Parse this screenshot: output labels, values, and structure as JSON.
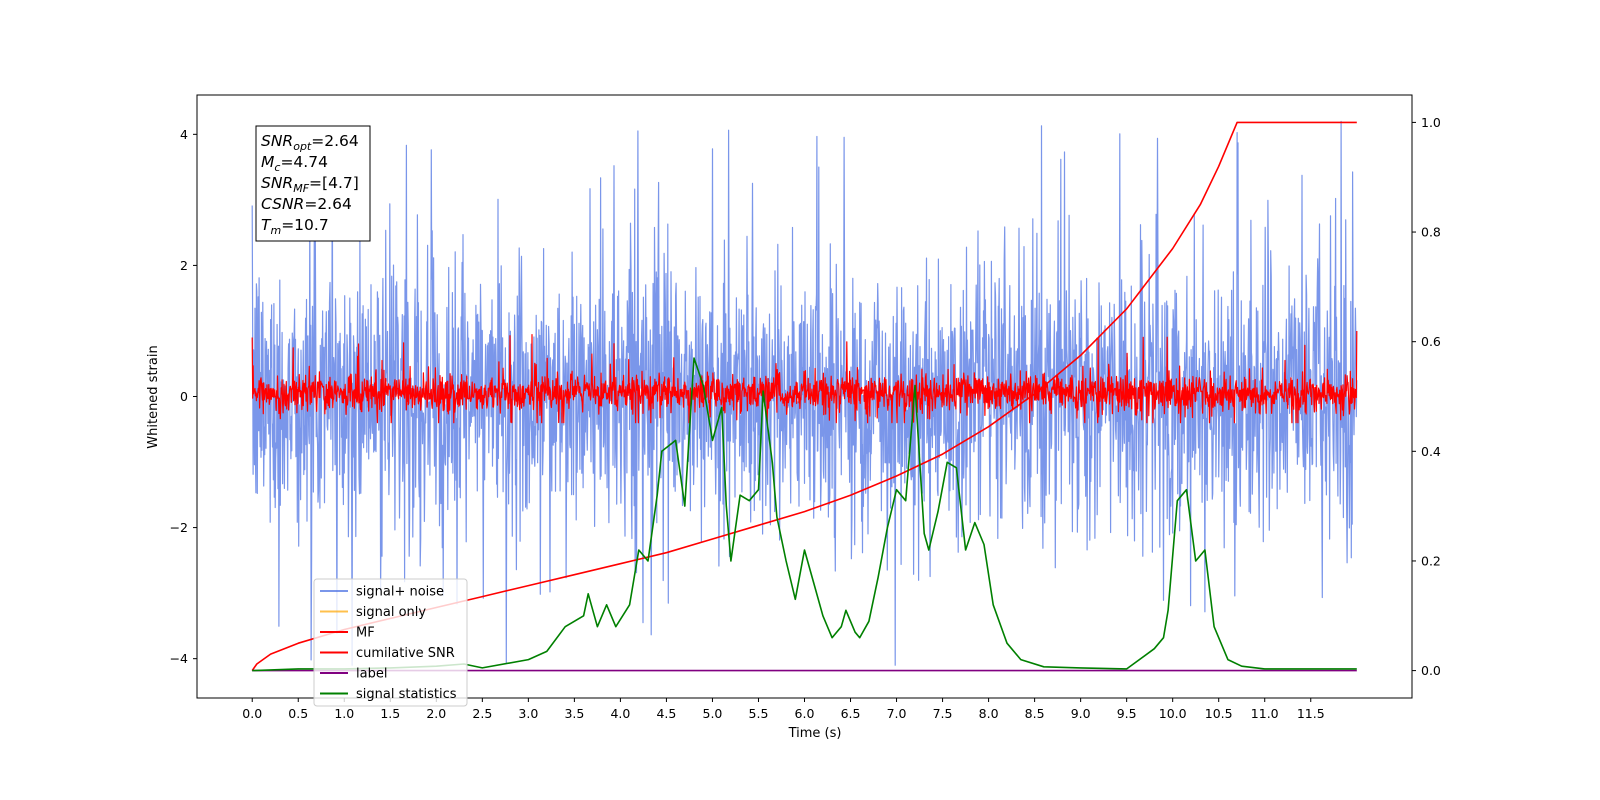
{
  "chart_data": {
    "type": "line",
    "xlabel": "Time (s)",
    "ylabel": "Whitened strain",
    "xlim": [
      -0.6,
      12.6
    ],
    "ylim_left": [
      -4.6,
      4.6
    ],
    "ylim_right": [
      -0.05,
      1.05
    ],
    "x_ticks": [
      0.0,
      0.5,
      1.0,
      1.5,
      2.0,
      2.5,
      3.0,
      3.5,
      4.0,
      4.5,
      5.0,
      5.5,
      6.0,
      6.5,
      7.0,
      7.5,
      8.0,
      8.5,
      9.0,
      9.5,
      10.0,
      10.5,
      11.0,
      11.5
    ],
    "x_tick_labels": [
      "0.0",
      "0.5",
      "1.0",
      "1.5",
      "2.0",
      "2.5",
      "3.0",
      "3.5",
      "4.0",
      "4.5",
      "5.0",
      "5.5",
      "6.0",
      "6.5",
      "7.0",
      "7.5",
      "8.0",
      "8.5",
      "9.0",
      "9.5",
      "10.0",
      "10.5",
      "11.0",
      "11.5"
    ],
    "y_left_ticks": [
      -4,
      -2,
      0,
      2,
      4
    ],
    "y_left_tick_labels": [
      "−4",
      "−2",
      "0",
      "2",
      "4"
    ],
    "y_right_ticks": [
      0.0,
      0.2,
      0.4,
      0.6,
      0.8,
      1.0
    ],
    "y_right_tick_labels": [
      "0.0",
      "0.2",
      "0.4",
      "0.6",
      "0.8",
      "1.0"
    ],
    "grid": false,
    "legend_placement": "lower-left",
    "annotation_box": {
      "lines": [
        {
          "base": "SNR",
          "sub": "opt",
          "rest": "=2.64"
        },
        {
          "base": "M",
          "sub": "c",
          "rest": "=4.74"
        },
        {
          "base": "SNR",
          "sub": "MF",
          "rest": "=[4.7]"
        },
        {
          "base": "CSNR",
          "sub": "",
          "rest": "=2.64"
        },
        {
          "base": "T",
          "sub": "m",
          "rest": "=10.7"
        }
      ]
    },
    "series": [
      {
        "name": "signal+ noise",
        "axis": "left",
        "color": "#4169e1",
        "opacity": 0.7,
        "kind": "noise",
        "x_range": [
          0.0,
          12.0
        ],
        "typical_range": [
          -2.5,
          2.5
        ],
        "extremes": [
          -4.1,
          4.2
        ]
      },
      {
        "name": "signal only",
        "axis": "left",
        "color": "#ffa500",
        "opacity": 0.7,
        "kind": "hidden"
      },
      {
        "name": "MF",
        "axis": "left",
        "color": "#ff0000",
        "kind": "noise",
        "x_range": [
          0.0,
          12.0
        ],
        "typical_range": [
          -0.3,
          0.4
        ],
        "extremes": [
          -0.4,
          1.0
        ]
      },
      {
        "name": "cumilative SNR",
        "axis": "right",
        "color": "#ff0000",
        "x": [
          0.0,
          0.05,
          0.2,
          0.5,
          1.0,
          1.5,
          2.0,
          2.5,
          3.0,
          3.5,
          4.0,
          4.5,
          5.0,
          5.5,
          6.0,
          6.5,
          7.0,
          7.5,
          8.0,
          8.5,
          9.0,
          9.5,
          10.0,
          10.3,
          10.5,
          10.7,
          11.0,
          11.5,
          12.0
        ],
        "y": [
          0.0,
          0.012,
          0.03,
          0.05,
          0.075,
          0.095,
          0.115,
          0.135,
          0.155,
          0.175,
          0.195,
          0.215,
          0.24,
          0.265,
          0.29,
          0.32,
          0.355,
          0.395,
          0.445,
          0.505,
          0.575,
          0.66,
          0.77,
          0.85,
          0.92,
          1.0,
          1.0,
          1.0,
          1.0
        ]
      },
      {
        "name": "label",
        "axis": "right",
        "color": "#800080",
        "x": [
          0.0,
          12.0
        ],
        "y": [
          0.0,
          0.0
        ]
      },
      {
        "name": "signal statistics",
        "axis": "right",
        "color": "#008000",
        "x": [
          0.0,
          0.5,
          1.0,
          1.5,
          2.0,
          2.3,
          2.5,
          3.0,
          3.2,
          3.4,
          3.6,
          3.65,
          3.75,
          3.85,
          3.95,
          4.1,
          4.2,
          4.3,
          4.4,
          4.45,
          4.6,
          4.7,
          4.8,
          4.9,
          5.0,
          5.1,
          5.15,
          5.2,
          5.3,
          5.4,
          5.5,
          5.55,
          5.65,
          5.7,
          5.8,
          5.9,
          6.0,
          6.1,
          6.2,
          6.3,
          6.4,
          6.45,
          6.55,
          6.6,
          6.7,
          6.8,
          6.9,
          7.0,
          7.1,
          7.2,
          7.3,
          7.35,
          7.45,
          7.55,
          7.65,
          7.75,
          7.85,
          7.95,
          8.05,
          8.2,
          8.35,
          8.6,
          9.0,
          9.5,
          9.8,
          9.9,
          9.95,
          10.05,
          10.15,
          10.25,
          10.35,
          10.45,
          10.6,
          10.75,
          11.0,
          11.5,
          12.0
        ],
        "y": [
          0.0,
          0.003,
          0.003,
          0.005,
          0.008,
          0.012,
          0.005,
          0.02,
          0.035,
          0.08,
          0.1,
          0.14,
          0.08,
          0.12,
          0.08,
          0.12,
          0.22,
          0.2,
          0.32,
          0.4,
          0.42,
          0.3,
          0.57,
          0.52,
          0.42,
          0.48,
          0.3,
          0.2,
          0.32,
          0.31,
          0.33,
          0.51,
          0.38,
          0.28,
          0.2,
          0.13,
          0.22,
          0.16,
          0.1,
          0.06,
          0.08,
          0.11,
          0.07,
          0.06,
          0.09,
          0.17,
          0.26,
          0.33,
          0.31,
          0.52,
          0.25,
          0.22,
          0.29,
          0.38,
          0.37,
          0.22,
          0.27,
          0.23,
          0.12,
          0.05,
          0.02,
          0.007,
          0.005,
          0.003,
          0.04,
          0.06,
          0.11,
          0.31,
          0.33,
          0.2,
          0.22,
          0.08,
          0.02,
          0.008,
          0.003,
          0.003,
          0.003
        ]
      }
    ]
  }
}
